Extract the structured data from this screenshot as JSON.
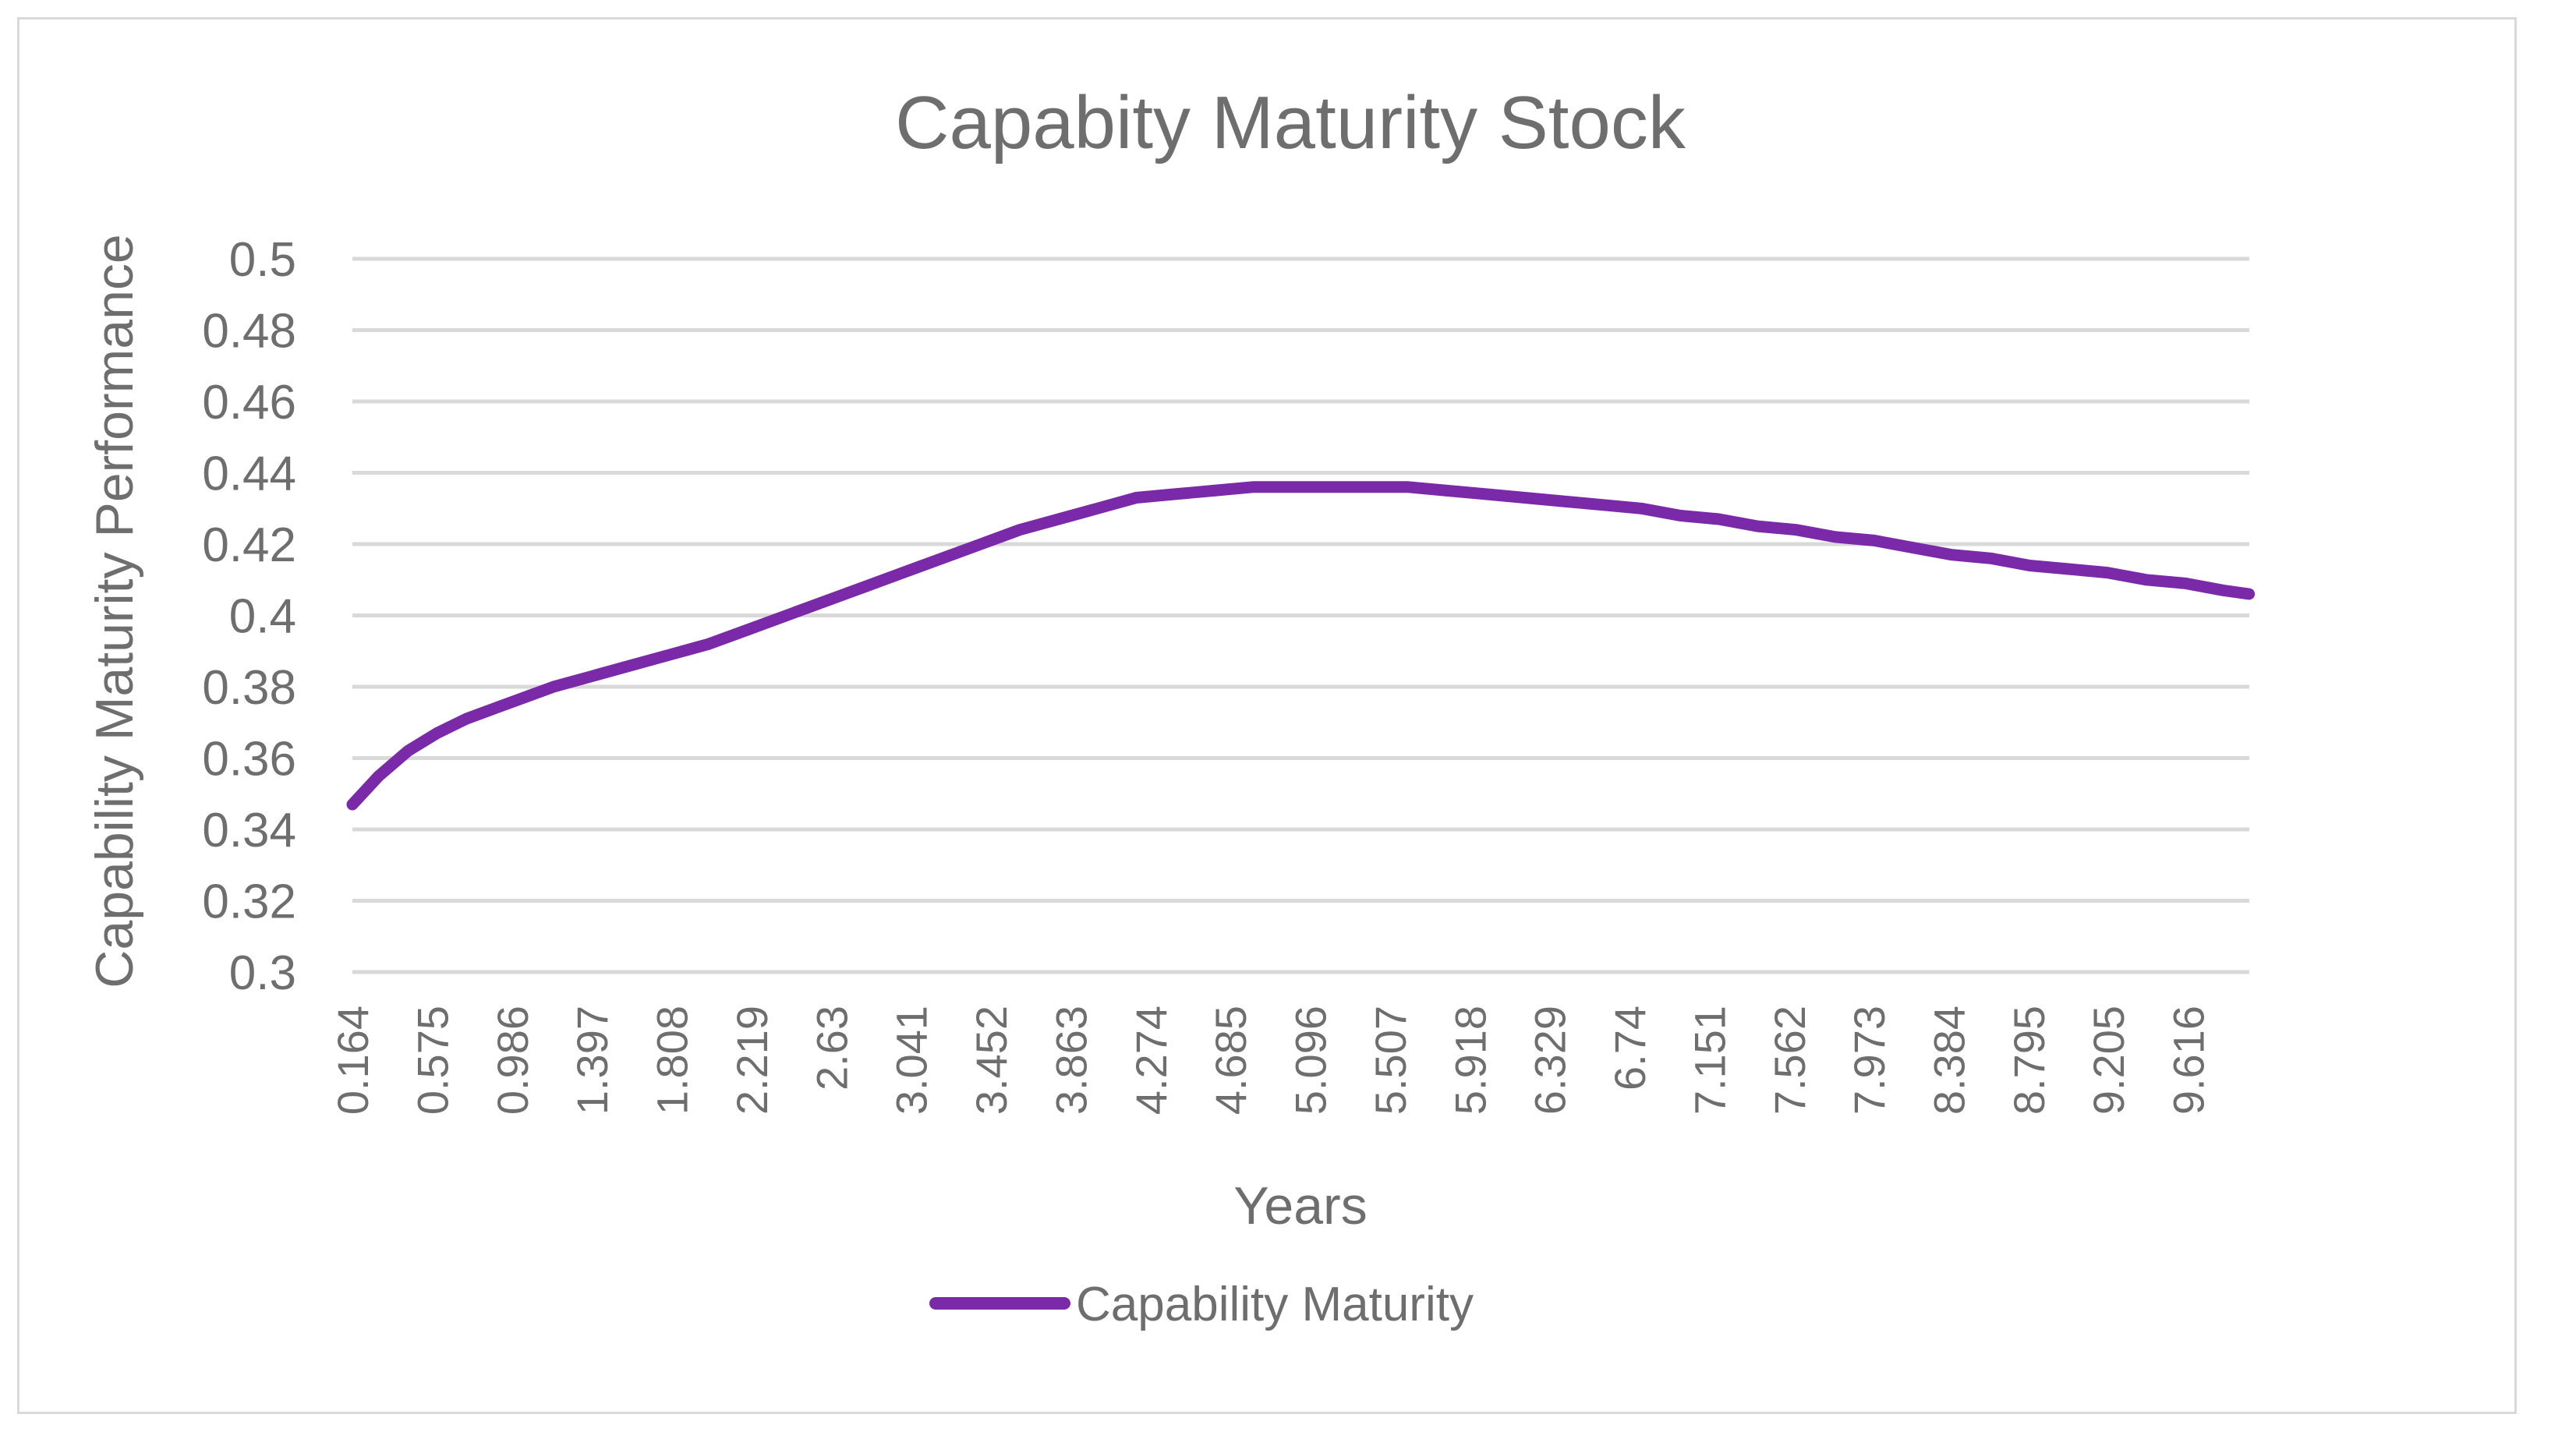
{
  "chart_data": {
    "type": "line",
    "title": "Capabity Maturity Stock",
    "xlabel": "Years",
    "ylabel": "Capability Maturity Performance",
    "ylim": [
      0.3,
      0.5
    ],
    "yticks": [
      "0.3",
      "0.32",
      "0.34",
      "0.36",
      "0.38",
      "0.4",
      "0.42",
      "0.44",
      "0.46",
      "0.48",
      "0.5"
    ],
    "xlim": [
      0.164,
      9.9315
    ],
    "xticks": [
      "0.164",
      "0.575",
      "0.986",
      "1.397",
      "1.808",
      "2.219",
      "2.63",
      "3.041",
      "3.452",
      "3.863",
      "4.274",
      "4.685",
      "5.096",
      "5.507",
      "5.918",
      "6.329",
      "6.74",
      "7.151",
      "7.562",
      "7.973",
      "8.384",
      "8.795",
      "9.205",
      "9.616"
    ],
    "grid": true,
    "legend_position": "bottom",
    "series": [
      {
        "name": "Capability Maturity",
        "color": "#7a2aa8",
        "x": [
          0.164,
          0.3,
          0.45,
          0.6,
          0.75,
          0.9,
          1.05,
          1.2,
          1.4,
          1.6,
          1.8,
          2.0,
          2.2,
          2.4,
          2.6,
          2.8,
          3.0,
          3.2,
          3.4,
          3.6,
          3.8,
          4.0,
          4.2,
          4.4,
          4.6,
          4.8,
          5.0,
          5.2,
          5.4,
          5.6,
          5.8,
          6.0,
          6.2,
          6.4,
          6.6,
          6.8,
          7.0,
          7.2,
          7.4,
          7.6,
          7.8,
          8.0,
          8.2,
          8.4,
          8.6,
          8.8,
          9.0,
          9.2,
          9.4,
          9.6,
          9.8,
          9.93
        ],
        "values": [
          0.347,
          0.355,
          0.362,
          0.367,
          0.371,
          0.374,
          0.377,
          0.38,
          0.383,
          0.386,
          0.389,
          0.392,
          0.396,
          0.4,
          0.404,
          0.408,
          0.412,
          0.416,
          0.42,
          0.424,
          0.427,
          0.43,
          0.433,
          0.434,
          0.435,
          0.436,
          0.436,
          0.436,
          0.436,
          0.436,
          0.435,
          0.434,
          0.433,
          0.432,
          0.431,
          0.43,
          0.428,
          0.427,
          0.425,
          0.424,
          0.422,
          0.421,
          0.419,
          0.417,
          0.416,
          0.414,
          0.413,
          0.412,
          0.41,
          0.409,
          0.407,
          0.406
        ]
      }
    ]
  }
}
